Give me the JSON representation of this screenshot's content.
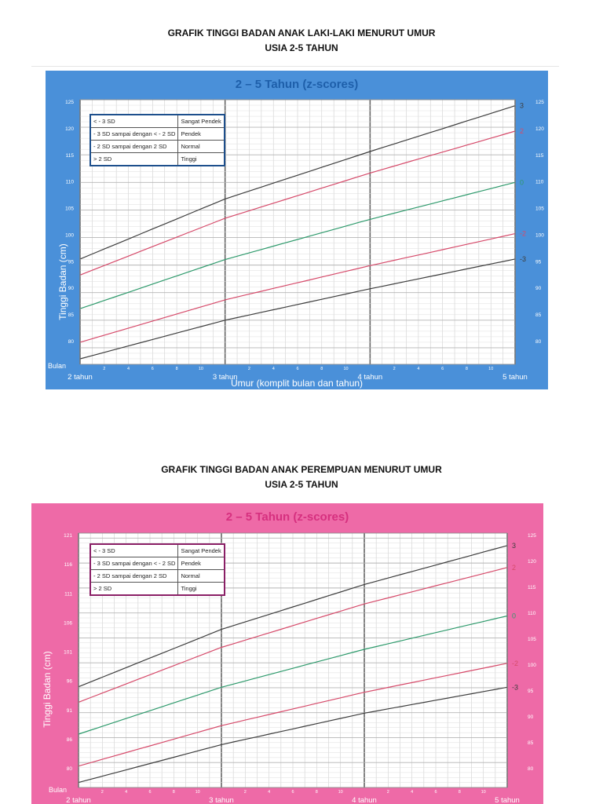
{
  "page": {
    "boy_title_line1": "GRAFIK TINGGI BADAN ANAK LAKI-LAKI MENURUT UMUR",
    "boy_title_line2": "USIA 2-5 TAHUN",
    "girl_title_line1": "GRAFIK TINGGI BADAN ANAK PEREMPUAN MENURUT UMUR",
    "girl_title_line2": "USIA 2-5 TAHUN"
  },
  "colors": {
    "boy_frame": "#4a90d9",
    "girl_frame": "#ee6aa7",
    "title_boy": "#1e5faa",
    "title_girl": "#d6307f",
    "line_sd3": "#3d3d3d",
    "line_sd2": "#d64a6a",
    "line_sd0": "#2e9a6c"
  },
  "legend": {
    "rows": [
      {
        "range": "< - 3 SD",
        "category": "Sangat Pendek"
      },
      {
        "range": "- 3 SD sampai dengan < - 2 SD",
        "category": "Pendek"
      },
      {
        "range": "- 2 SD sampai dengan 2 SD",
        "category": "Normal"
      },
      {
        "range": "> 2 SD",
        "category": "Tinggi"
      }
    ]
  },
  "chart_data": [
    {
      "type": "line",
      "title": "2 – 5 Tahun (z-scores)",
      "xlabel": "Umur (komplit bulan dan tahun)",
      "ylabel": "Tinggi Badan (cm)",
      "x_corner_label": "Bulan",
      "x_unit": "months",
      "xlim": [
        24,
        60
      ],
      "x_year_ticks": [
        {
          "x": 24,
          "label": "2 tahun"
        },
        {
          "x": 36,
          "label": "3 tahun"
        },
        {
          "x": 48,
          "label": "4 tahun"
        },
        {
          "x": 60,
          "label": "5 tahun"
        }
      ],
      "x_month_labels": [
        "2",
        "4",
        "6",
        "8",
        "10"
      ],
      "ylim": [
        77,
        125
      ],
      "y_ticks_left": [
        "80",
        "85",
        "90",
        "95",
        "100",
        "105",
        "110",
        "115",
        "120",
        "125"
      ],
      "y_ticks_right": [
        "80",
        "85",
        "90",
        "95",
        "100",
        "105",
        "110",
        "115",
        "120",
        "125"
      ],
      "grid": true,
      "series": [
        {
          "name": "3",
          "color": "#3d3d3d",
          "x": [
            24,
            36,
            48,
            60
          ],
          "y": [
            96.1,
            107.0,
            115.6,
            123.9
          ]
        },
        {
          "name": "2",
          "color": "#d64a6a",
          "x": [
            24,
            36,
            48,
            60
          ],
          "y": [
            93.2,
            103.5,
            111.7,
            119.3
          ]
        },
        {
          "name": "0",
          "color": "#2e9a6c",
          "x": [
            24,
            36,
            48,
            60
          ],
          "y": [
            87.1,
            96.0,
            103.3,
            110.0
          ]
        },
        {
          "name": "-2",
          "color": "#d64a6a",
          "x": [
            24,
            36,
            48,
            60
          ],
          "y": [
            81.0,
            88.7,
            94.9,
            100.7
          ]
        },
        {
          "name": "-3",
          "color": "#3d3d3d",
          "x": [
            24,
            36,
            48,
            60
          ],
          "y": [
            78.0,
            85.0,
            90.7,
            96.1
          ]
        }
      ]
    },
    {
      "type": "line",
      "title": "2 – 5 Tahun (z-scores)",
      "xlabel": "",
      "ylabel": "Tinggi Badan (cm)",
      "x_corner_label": "Bulan",
      "x_unit": "months",
      "xlim": [
        24,
        60
      ],
      "x_year_ticks": [
        {
          "x": 24,
          "label": "2 tahun"
        },
        {
          "x": 36,
          "label": "3 tahun"
        },
        {
          "x": 48,
          "label": "4 tahun"
        },
        {
          "x": 60,
          "label": "5 tahun"
        }
      ],
      "x_month_labels": [
        "2",
        "4",
        "6",
        "8",
        "10"
      ],
      "ylim": [
        75,
        126
      ],
      "y_ticks_left": [
        "121",
        "116",
        "111",
        "106",
        "101",
        "96",
        "91",
        "86",
        "80"
      ],
      "y_ticks_right": [
        "80",
        "85",
        "90",
        "95",
        "100",
        "105",
        "110",
        "115",
        "120",
        "125"
      ],
      "grid": true,
      "series": [
        {
          "name": "3",
          "color": "#3d3d3d",
          "x": [
            24,
            36,
            48,
            60
          ],
          "y": [
            95.2,
            106.7,
            115.7,
            123.5
          ]
        },
        {
          "name": "2",
          "color": "#d64a6a",
          "x": [
            24,
            36,
            48,
            60
          ],
          "y": [
            92.1,
            103.1,
            111.8,
            119.1
          ]
        },
        {
          "name": "0",
          "color": "#2e9a6c",
          "x": [
            24,
            36,
            48,
            60
          ],
          "y": [
            85.7,
            95.1,
            102.7,
            109.4
          ]
        },
        {
          "name": "-2",
          "color": "#d64a6a",
          "x": [
            24,
            36,
            48,
            60
          ],
          "y": [
            79.3,
            87.4,
            94.1,
            99.9
          ]
        },
        {
          "name": "-3",
          "color": "#3d3d3d",
          "x": [
            24,
            36,
            48,
            60
          ],
          "y": [
            76.0,
            83.6,
            89.9,
            95.1
          ]
        }
      ]
    }
  ]
}
